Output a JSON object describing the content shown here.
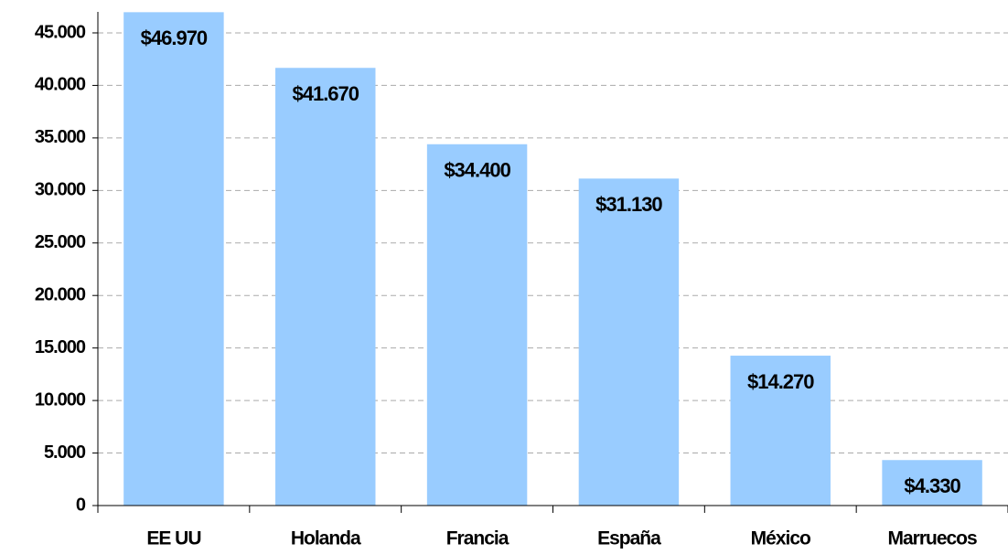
{
  "chart_data": {
    "type": "bar",
    "categories": [
      "EE UU",
      "Holanda",
      "Francia",
      "España",
      "México",
      "Marruecos"
    ],
    "values": [
      46970,
      41670,
      34400,
      31130,
      14270,
      4330
    ],
    "value_labels": [
      "$46.970",
      "$41.670",
      "$34.400",
      "$31.130",
      "$14.270",
      "$4.330"
    ],
    "color": "#99ccff",
    "ylim": [
      0,
      47000
    ],
    "yticks": [
      0,
      {
        "value": 5000,
        "label": "5.000"
      },
      {
        "value": 10000,
        "label": "10.000"
      },
      {
        "value": 15000,
        "label": "15.000"
      },
      {
        "value": 20000,
        "label": "20.000"
      },
      {
        "value": 25000,
        "label": "25.000"
      },
      {
        "value": 30000,
        "label": "30.000"
      },
      {
        "value": 35000,
        "label": "35.000"
      },
      {
        "value": 40000,
        "label": "40.000"
      },
      {
        "value": 45000,
        "label": "45.000"
      }
    ],
    "grid": true
  }
}
